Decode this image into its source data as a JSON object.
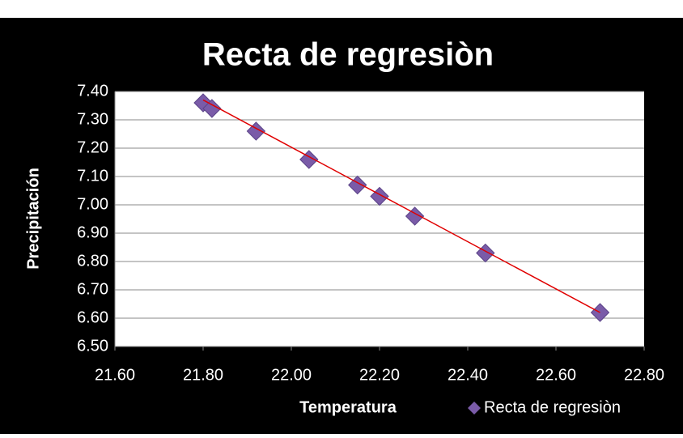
{
  "chart_data": {
    "type": "scatter",
    "title": "Recta de regresiòn",
    "x_label": "Temperatura",
    "y_label": "Precipitación",
    "series": [
      {
        "name": "Recta de regresiòn",
        "color": "#7a5ba8",
        "x": [
          21.8,
          21.82,
          21.92,
          22.04,
          22.15,
          22.2,
          22.28,
          22.44,
          22.7
        ],
        "values": [
          7.36,
          7.34,
          7.26,
          7.16,
          7.07,
          7.03,
          6.96,
          6.83,
          6.62
        ]
      }
    ],
    "trendline": {
      "color": "#e00000",
      "x": [
        21.8,
        22.7
      ],
      "values": [
        7.37,
        6.62
      ]
    },
    "xlim": [
      21.6,
      22.8
    ],
    "xticks": [
      {
        "value": 21.6,
        "label": "21.60"
      },
      {
        "value": 21.8,
        "label": "21.80"
      },
      {
        "value": 22.0,
        "label": "22.00"
      },
      {
        "value": 22.2,
        "label": "22.20"
      },
      {
        "value": 22.4,
        "label": "22.40"
      },
      {
        "value": 22.6,
        "label": "22.60"
      },
      {
        "value": 22.8,
        "label": "22.80"
      }
    ],
    "ylim": [
      6.5,
      7.4
    ],
    "yticks": [
      {
        "value": 6.5,
        "label": "6.50"
      },
      {
        "value": 6.6,
        "label": "6.60"
      },
      {
        "value": 6.7,
        "label": "6.70"
      },
      {
        "value": 6.8,
        "label": "6.80"
      },
      {
        "value": 6.9,
        "label": "6.90"
      },
      {
        "value": 7.0,
        "label": "7.00"
      },
      {
        "value": 7.1,
        "label": "7.10"
      },
      {
        "value": 7.2,
        "label": "7.20"
      },
      {
        "value": 7.3,
        "label": "7.30"
      },
      {
        "value": 7.4,
        "label": "7.40"
      }
    ],
    "grid": true,
    "legend": "bottom-right"
  }
}
